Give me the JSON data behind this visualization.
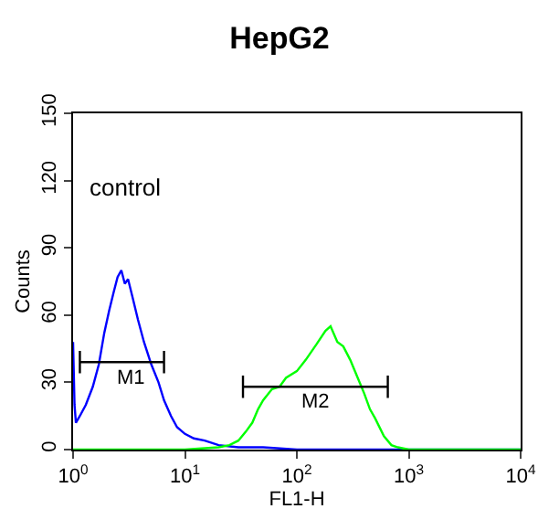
{
  "chart_data": {
    "type": "line",
    "title": "HepG2",
    "xlabel": "FL1-H",
    "ylabel": "Counts",
    "log": "x",
    "marker": "none",
    "line_style": "solid",
    "xlim": [
      1,
      10000
    ],
    "ylim": [
      0,
      150
    ],
    "xticks": [
      {
        "value": 1,
        "label": "10$^{0}$"
      },
      {
        "value": 10,
        "label": "10$^{1}$"
      },
      {
        "value": 100,
        "label": "10$^{2}$"
      },
      {
        "value": 1000,
        "label": "10$^{3}$"
      },
      {
        "value": 10000,
        "label": "10$^{4}$"
      }
    ],
    "yticks": [
      0,
      30,
      60,
      90,
      120,
      150
    ],
    "annotations": [
      "control",
      "M1",
      "M2"
    ],
    "series": [
      {
        "color": "#0000ff",
        "x": [
          1.0,
          1.03,
          1.06,
          1.15,
          1.3,
          1.5,
          1.7,
          1.9,
          2.1,
          2.3,
          2.5,
          2.7,
          2.9,
          3.1,
          3.4,
          3.8,
          4.3,
          5,
          5.8,
          6.5,
          7.5,
          8.5,
          10,
          12,
          15,
          20,
          30,
          50,
          100,
          1000,
          10000
        ],
        "values": [
          48,
          20,
          12,
          15,
          20,
          28,
          38,
          52,
          62,
          70,
          77,
          80,
          74,
          76,
          68,
          58,
          48,
          38,
          30,
          22,
          15,
          10,
          7,
          5,
          4,
          2,
          1,
          1,
          0,
          0,
          0
        ]
      },
      {
        "color": "#00ff00",
        "x": [
          1,
          10,
          20,
          25,
          30,
          35,
          40,
          45,
          50,
          60,
          70,
          80,
          100,
          120,
          150,
          180,
          200,
          230,
          260,
          300,
          350,
          400,
          450,
          500,
          600,
          700,
          800,
          1000,
          10000
        ],
        "values": [
          0,
          0,
          1,
          2,
          4,
          8,
          12,
          18,
          22,
          27,
          28,
          32,
          35,
          40,
          47,
          53,
          55,
          48,
          46,
          40,
          32,
          25,
          18,
          14,
          6,
          2,
          1,
          0,
          0
        ]
      },
      {
        "color": "#000000",
        "x": [
          1.15,
          1.15,
          1.15,
          6.5,
          6.5,
          6.5
        ],
        "values": [
          44,
          34,
          39,
          39,
          44,
          34
        ]
      },
      {
        "color": "#000000",
        "x": [
          33,
          33,
          33,
          650,
          650,
          650
        ],
        "values": [
          33,
          23,
          28,
          28,
          33,
          23
        ]
      }
    ]
  }
}
